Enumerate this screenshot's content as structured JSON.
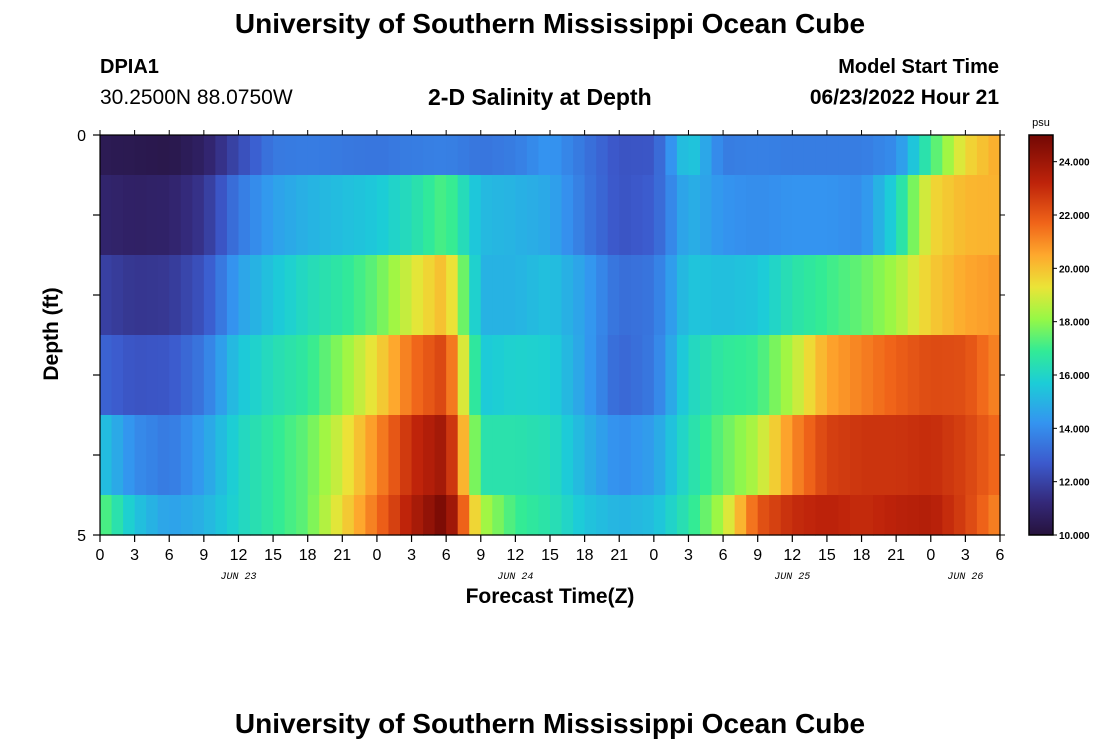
{
  "header": {
    "title": "University of Southern Mississippi Ocean Cube",
    "station_id": "DPIA1",
    "coords": "30.2500N  88.0750W",
    "plot_title": "2-D Salinity at Depth",
    "start_label": "Model Start Time",
    "start_value": "06/23/2022 Hour 21"
  },
  "footer": {
    "title": "University of Southern Mississippi Ocean Cube"
  },
  "chart_data": {
    "type": "heatmap",
    "title": "2-D Salinity at Depth",
    "xlabel": "Forecast Time(Z)",
    "ylabel": "Depth (ft)",
    "colorbar_unit": "psu",
    "colorbar_range": [
      10,
      25
    ],
    "colorbar_ticks": [
      "10.000",
      "12.000",
      "14.000",
      "16.000",
      "18.000",
      "20.000",
      "22.000",
      "24.000"
    ],
    "colorbar_tick_values": [
      10,
      12,
      14,
      16,
      18,
      20,
      22,
      24
    ],
    "x_range_hours": [
      0,
      78
    ],
    "x_tick_labels": [
      "0",
      "3",
      "6",
      "9",
      "12",
      "15",
      "18",
      "21",
      "0",
      "3",
      "6",
      "9",
      "12",
      "15",
      "18",
      "21",
      "0",
      "3",
      "6",
      "9",
      "12",
      "15",
      "18",
      "21",
      "0",
      "3",
      "6"
    ],
    "date_labels": [
      {
        "text": "JUN 23",
        "hour": 12
      },
      {
        "text": "JUN 24",
        "hour": 36
      },
      {
        "text": "JUN 25",
        "hour": 60
      },
      {
        "text": "JUN 26",
        "hour": 75
      }
    ],
    "y_tick_labels": [
      "0",
      "5"
    ],
    "y_range": [
      0,
      5
    ],
    "layer_depth_edges": [
      0,
      0.5,
      1.5,
      2.5,
      3.5,
      4.5,
      5
    ],
    "control_hours": [
      0,
      3,
      6,
      9,
      12,
      15,
      18,
      21,
      24,
      27,
      30,
      33,
      36,
      39,
      42,
      45,
      48,
      51,
      54,
      57,
      60,
      63,
      66,
      69,
      72,
      75,
      78
    ],
    "layers": [
      {
        "depth": 0,
        "values": [
          10.5,
          10.4,
          10.3,
          10.8,
          12.2,
          13.5,
          13.6,
          13.5,
          13.4,
          13.6,
          13.7,
          13.4,
          13.6,
          14.3,
          13.4,
          12.5,
          12.6,
          15.8,
          13.6,
          13.7,
          13.6,
          13.6,
          13.6,
          14.0,
          17.0,
          19.5,
          20.5
        ]
      },
      {
        "depth": 1,
        "values": [
          11.0,
          10.8,
          10.9,
          11.6,
          13.5,
          14.5,
          15.0,
          15.3,
          15.6,
          16.3,
          17.3,
          15.2,
          15.0,
          14.7,
          13.5,
          12.5,
          12.8,
          15.0,
          14.2,
          14.0,
          14.2,
          14.2,
          14.0,
          16.0,
          19.5,
          20.2,
          20.3
        ]
      },
      {
        "depth": 2,
        "values": [
          12.0,
          11.6,
          11.7,
          12.5,
          14.5,
          15.5,
          16.2,
          16.7,
          17.5,
          19.0,
          20.2,
          15.0,
          15.0,
          15.4,
          14.5,
          13.2,
          13.4,
          15.5,
          15.3,
          15.5,
          16.5,
          17.0,
          17.5,
          18.3,
          19.8,
          20.5,
          20.8
        ]
      },
      {
        "depth": 3,
        "values": [
          13.0,
          12.5,
          12.6,
          13.5,
          15.5,
          16.3,
          16.8,
          18.0,
          19.5,
          21.5,
          22.5,
          15.6,
          15.9,
          15.8,
          14.5,
          13.0,
          13.5,
          16.0,
          16.8,
          17.0,
          18.5,
          20.5,
          21.2,
          21.8,
          22.3,
          22.2,
          21.0
        ]
      },
      {
        "depth": 4,
        "values": [
          15.5,
          14.0,
          13.5,
          14.5,
          16.0,
          16.8,
          17.5,
          19.0,
          21.0,
          23.0,
          24.0,
          16.5,
          16.5,
          16.3,
          15.0,
          14.0,
          14.5,
          16.3,
          17.5,
          18.5,
          21.0,
          22.5,
          22.8,
          22.8,
          23.0,
          22.5,
          21.5
        ]
      },
      {
        "depth": 5,
        "values": [
          17.5,
          15.5,
          14.5,
          15.0,
          16.0,
          16.8,
          17.5,
          19.5,
          21.5,
          23.5,
          25.0,
          18.5,
          17.0,
          16.5,
          15.5,
          15.0,
          15.3,
          16.6,
          18.5,
          22.0,
          23.0,
          23.3,
          23.0,
          23.3,
          23.5,
          22.5,
          21.0
        ]
      }
    ]
  }
}
